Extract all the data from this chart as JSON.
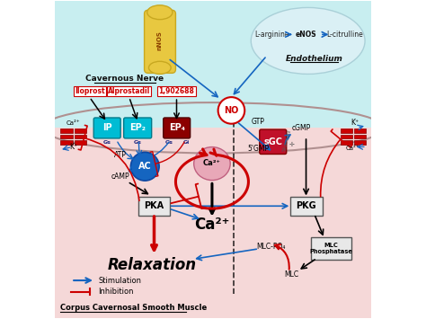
{
  "bg_top_color": "#c8eef0",
  "bg_bottom_color": "#f5d8d8",
  "title": "Corpus Cavernosal Smooth Muscle",
  "endothelium_label": "Endothelium",
  "cavernous_nerve_label": "Cavernous Nerve",
  "legend_stimulation": "Stimulation",
  "legend_inhibition": "Inhibition",
  "relaxation_text": "Relaxation",
  "blue_arrow_color": "#1565c0",
  "red_arrow_color": "#cc0000",
  "black_color": "black",
  "ip_color": "#00bcd4",
  "ep2_color": "#00bcd4",
  "ep4_color": "#8b0000",
  "ac_color": "#1565c0",
  "sgc_color": "#c0102a",
  "pka_pkg_color": "#e8e8e8",
  "ion_bar_color": "#cc0000",
  "endo_bg": "#daf0f5",
  "nerve_color": "#e8c840"
}
